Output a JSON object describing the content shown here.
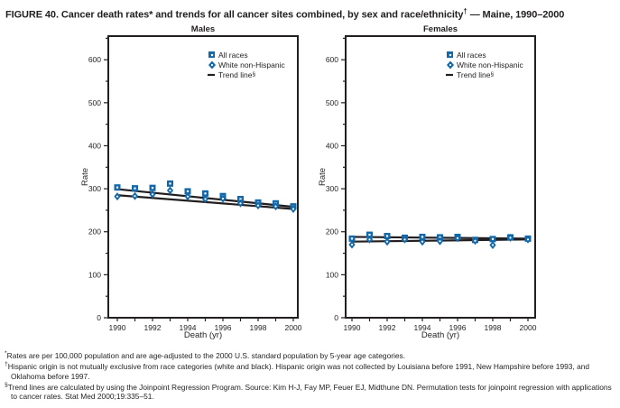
{
  "figure_title": {
    "text_before_sup": "FIGURE 40. Cancer death rates* and trends for all cancer sites combined, by sex and race/ethnicity",
    "sup": "†",
    "text_after_sup": " — Maine, 1990–2000"
  },
  "colors": {
    "series_blue": "#1268a8",
    "trend_black": "#231f20"
  },
  "legend": {
    "items": [
      {
        "icon": "square-marker",
        "label": "All races",
        "sup": ""
      },
      {
        "icon": "diamond-marker",
        "label": "White non-Hispanic",
        "sup": ""
      },
      {
        "icon": "dash-marker",
        "label": "Trend line",
        "sup": "§"
      }
    ]
  },
  "chart_data": [
    {
      "type": "line",
      "title": "Males",
      "xlabel": "Death (yr)",
      "ylabel": "Rate",
      "x": [
        1990,
        1991,
        1992,
        1993,
        1994,
        1995,
        1996,
        1997,
        1998,
        1999,
        2000
      ],
      "xtick_labels": [
        1990,
        1992,
        1994,
        1996,
        1998,
        2000
      ],
      "ylim": [
        0,
        655
      ],
      "ytick_step": 100,
      "yminor_step": 50,
      "grid": "off",
      "legend_position": "top-right-inside",
      "series": [
        {
          "name": "All races",
          "marker": "square",
          "values": [
            303,
            301,
            302,
            312,
            294,
            289,
            283,
            276,
            268,
            266,
            259
          ]
        },
        {
          "name": "White non-Hispanic",
          "marker": "diamond",
          "values": [
            282,
            283,
            287,
            296,
            282,
            276,
            277,
            266,
            261,
            259,
            253
          ]
        }
      ],
      "trend_lines": [
        {
          "name": "All races trend",
          "x": [
            1990,
            2000
          ],
          "y": [
            299,
            258
          ]
        },
        {
          "name": "White non-Hispanic trend",
          "x": [
            1990,
            2000
          ],
          "y": [
            285,
            253
          ]
        }
      ]
    },
    {
      "type": "line",
      "title": "Females",
      "xlabel": "Death (yr)",
      "ylabel": "Rate",
      "x": [
        1990,
        1991,
        1992,
        1993,
        1994,
        1995,
        1996,
        1997,
        1998,
        1999,
        2000
      ],
      "xtick_labels": [
        1990,
        1992,
        1994,
        1996,
        1998,
        2000
      ],
      "ylim": [
        0,
        655
      ],
      "ytick_step": 100,
      "yminor_step": 50,
      "grid": "off",
      "legend_position": "top-right-inside",
      "series": [
        {
          "name": "All races",
          "marker": "square",
          "values": [
            184,
            193,
            190,
            186,
            188,
            187,
            188,
            181,
            183,
            187,
            184
          ]
        },
        {
          "name": "White non-Hispanic",
          "marker": "diamond",
          "values": [
            170,
            182,
            177,
            182,
            177,
            178,
            185,
            179,
            169,
            186,
            182
          ]
        }
      ],
      "trend_lines": [
        {
          "name": "All races trend",
          "x": [
            1990,
            2000
          ],
          "y": [
            188,
            184
          ]
        },
        {
          "name": "White non-Hispanic trend",
          "x": [
            1990,
            2000
          ],
          "y": [
            177,
            182
          ]
        }
      ]
    }
  ],
  "footnotes": [
    {
      "marker": "*",
      "text": "Rates are per 100,000 population and are age-adjusted to the 2000 U.S. standard population by 5-year age categories."
    },
    {
      "marker": "†",
      "text": "Hispanic origin is not mutually exclusive from race categories (white and black). Hispanic origin was not collected by Louisiana before 1991, New Hampshire before 1993, and Oklahoma before 1997."
    },
    {
      "marker": "§",
      "text": "Trend lines are calculated by using the Joinpoint Regression Program. Source: Kim H-J, Fay MP, Feuer EJ, Midthune DN. Permutation tests for joinpoint regression with applications to cancer rates. Stat Med 2000;19:335–51."
    }
  ]
}
